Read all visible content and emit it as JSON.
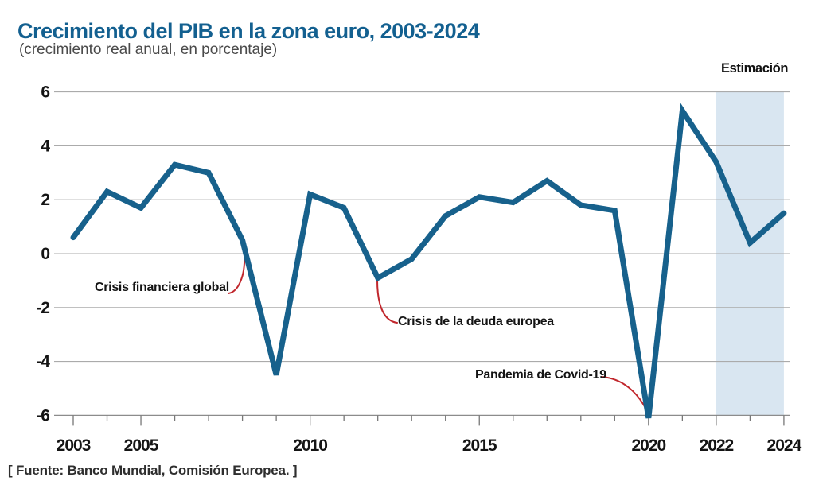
{
  "colors": {
    "title": "#136090",
    "line": "#17618c",
    "callout": "#c1272d",
    "band": "#d9e6f1",
    "grid": "#ababab",
    "axis": "#8c8c8c"
  },
  "header": {
    "title": "Crecimiento del PIB en la zona euro, 2003-2024",
    "subtitle": "(crecimiento real anual, en porcentaje)"
  },
  "footer": {
    "source": "[ Fuente: Banco Mundial, Comisión Europea. ]"
  },
  "chart_data": {
    "type": "line",
    "title": "Crecimiento del PIB en la zona euro, 2003-2024",
    "subtitle": "(crecimiento real anual, en porcentaje)",
    "x": [
      2003,
      2004,
      2005,
      2006,
      2007,
      2008,
      2009,
      2010,
      2011,
      2012,
      2013,
      2014,
      2015,
      2016,
      2017,
      2018,
      2019,
      2020,
      2021,
      2022,
      2023,
      2024
    ],
    "values": [
      0.6,
      2.3,
      1.7,
      3.3,
      3.0,
      0.5,
      -4.5,
      2.2,
      1.7,
      -0.9,
      -0.2,
      1.4,
      2.1,
      1.9,
      2.7,
      1.8,
      1.6,
      -6.1,
      5.3,
      3.4,
      0.4,
      1.5
    ],
    "xlabel": "",
    "ylabel": "",
    "ylim": [
      -6,
      6
    ],
    "yticks": [
      6,
      4,
      2,
      0,
      -2,
      -4,
      -6
    ],
    "xticks_labeled": [
      2003,
      2005,
      2010,
      2015,
      2020,
      2022,
      2024
    ],
    "grid": "horizontal",
    "legend": "none",
    "estimate_band": {
      "label": "Estimación",
      "x_start": 2022,
      "x_end": 2024
    },
    "annotations": [
      {
        "label": "Crisis financiera global",
        "points_to_year": 2008
      },
      {
        "label": "Crisis de la deuda europea",
        "points_to_year": 2012
      },
      {
        "label": "Pandemia de Covid-19",
        "points_to_year": 2020
      }
    ],
    "source": "[ Fuente: Banco Mundial, Comisión Europea. ]"
  }
}
